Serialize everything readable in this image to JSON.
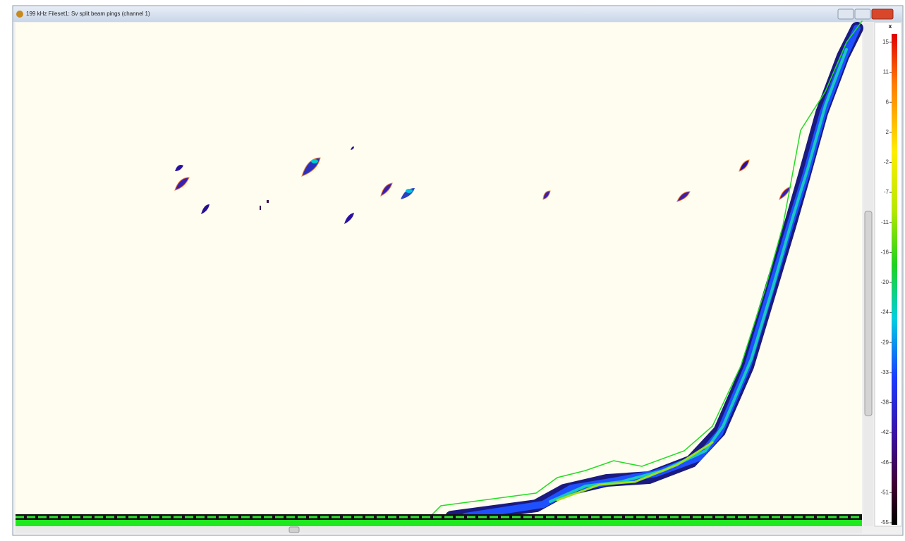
{
  "window": {
    "title": "199 kHz Fileset1: Sv split beam pings (channel 1)"
  },
  "color_scale": {
    "close": "x",
    "labels": [
      15,
      11,
      6,
      2,
      -2,
      -7,
      -11,
      -16,
      -20,
      -24,
      -29,
      -33,
      -38,
      -42,
      -46,
      -51,
      -55
    ]
  }
}
